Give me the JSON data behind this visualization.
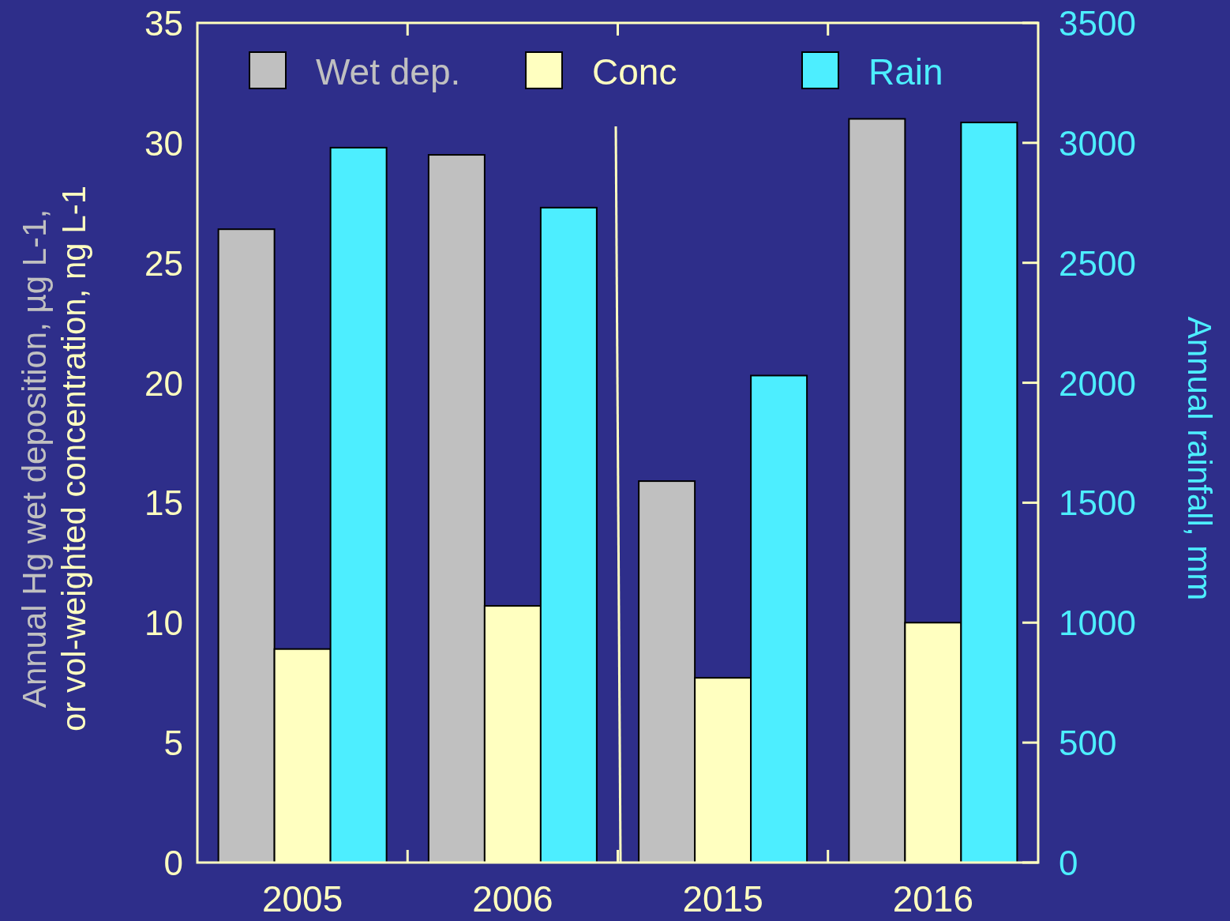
{
  "chart_data": {
    "type": "bar",
    "categories": [
      "2005",
      "2006",
      "2015",
      "2016"
    ],
    "ylabel": "Annual Hg wet deposition, µg L-1,\nor vol-weighted concentration, ng L-1",
    "y2label": "Annual rainfall, mm",
    "series": [
      {
        "name": "Wet dep.",
        "color": "#c0c0c0",
        "values": [
          26.4,
          29.5,
          15.9,
          31.0
        ]
      },
      {
        "name": "Conc",
        "color": "#ffffc0",
        "values": [
          8.9,
          10.7,
          7.7,
          10.0
        ]
      },
      {
        "name": "Rain",
        "color": "#4deeff",
        "axis": "y2",
        "values": [
          2980,
          2730,
          2030,
          3085
        ]
      }
    ],
    "ylim": [
      0,
      35
    ],
    "yticks": [
      0,
      5,
      10,
      15,
      20,
      25,
      30,
      35
    ],
    "y2lim": [
      0,
      3500
    ],
    "y2ticks": [
      0,
      500,
      1000,
      1500,
      2000,
      2500,
      3000,
      3500
    ],
    "legend": "top",
    "grid": false
  }
}
